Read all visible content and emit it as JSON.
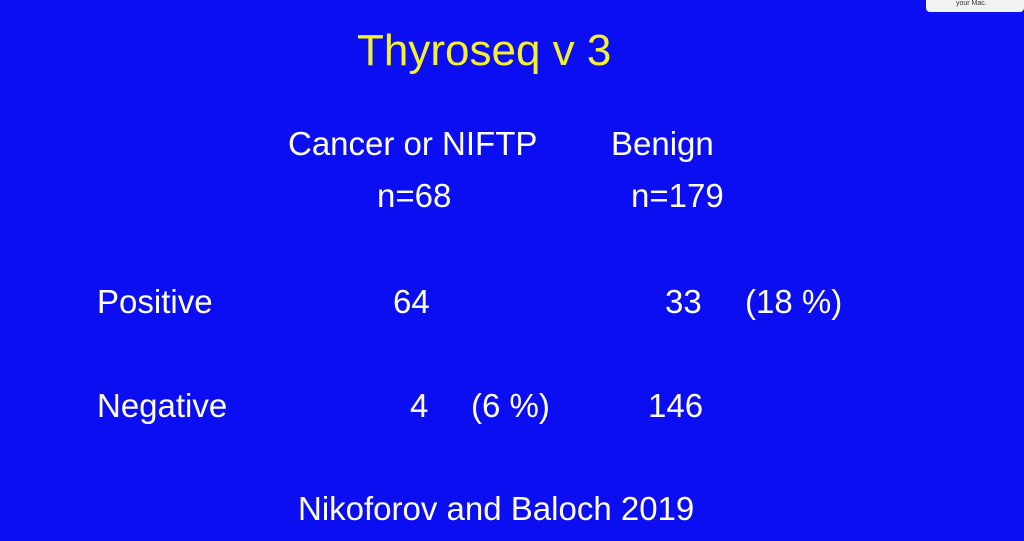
{
  "slide": {
    "title": "Thyroseq v 3",
    "columns": [
      {
        "label": "Cancer or NIFTP",
        "n": "n=68"
      },
      {
        "label": "Benign",
        "n": "n=179"
      }
    ],
    "rows": [
      {
        "label": "Positive",
        "cancer": "64",
        "cancer_pct": "",
        "benign": "33",
        "benign_pct": "(18 %)"
      },
      {
        "label": "Negative",
        "cancer": "4",
        "cancer_pct": "(6 %)",
        "benign": "146",
        "benign_pct": ""
      }
    ],
    "citation": "Nikoforov and Baloch 2019",
    "notification": "your Mac."
  }
}
